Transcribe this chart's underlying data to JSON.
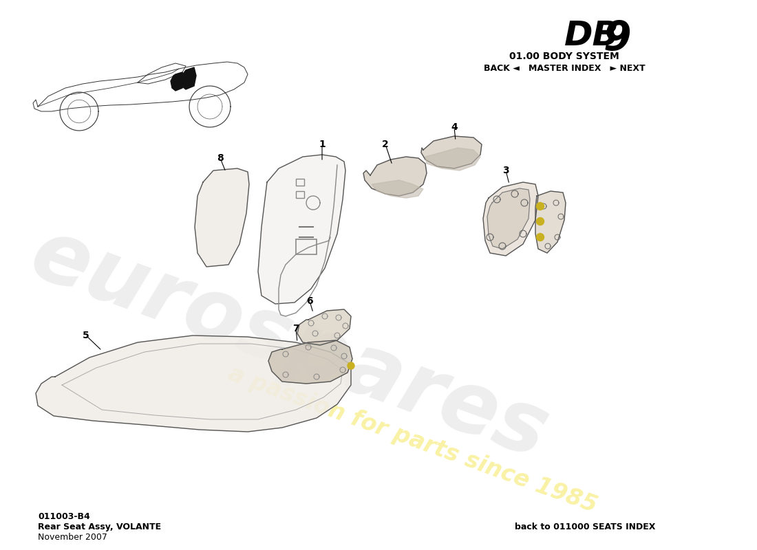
{
  "title_db9": "DB 9",
  "title_system": "01.00 BODY SYSTEM",
  "nav_text": "BACK ◄   MASTER INDEX   ► NEXT",
  "doc_number": "011003-B4",
  "doc_name": "Rear Seat Assy, VOLANTE",
  "doc_date": "November 2007",
  "back_link": "back to 011000 SEATS INDEX",
  "watermark1": "eurospares",
  "watermark2": "a passion for parts since 1985",
  "bg_color": "#ffffff",
  "line_color": "#555555",
  "line_width": 1.0
}
